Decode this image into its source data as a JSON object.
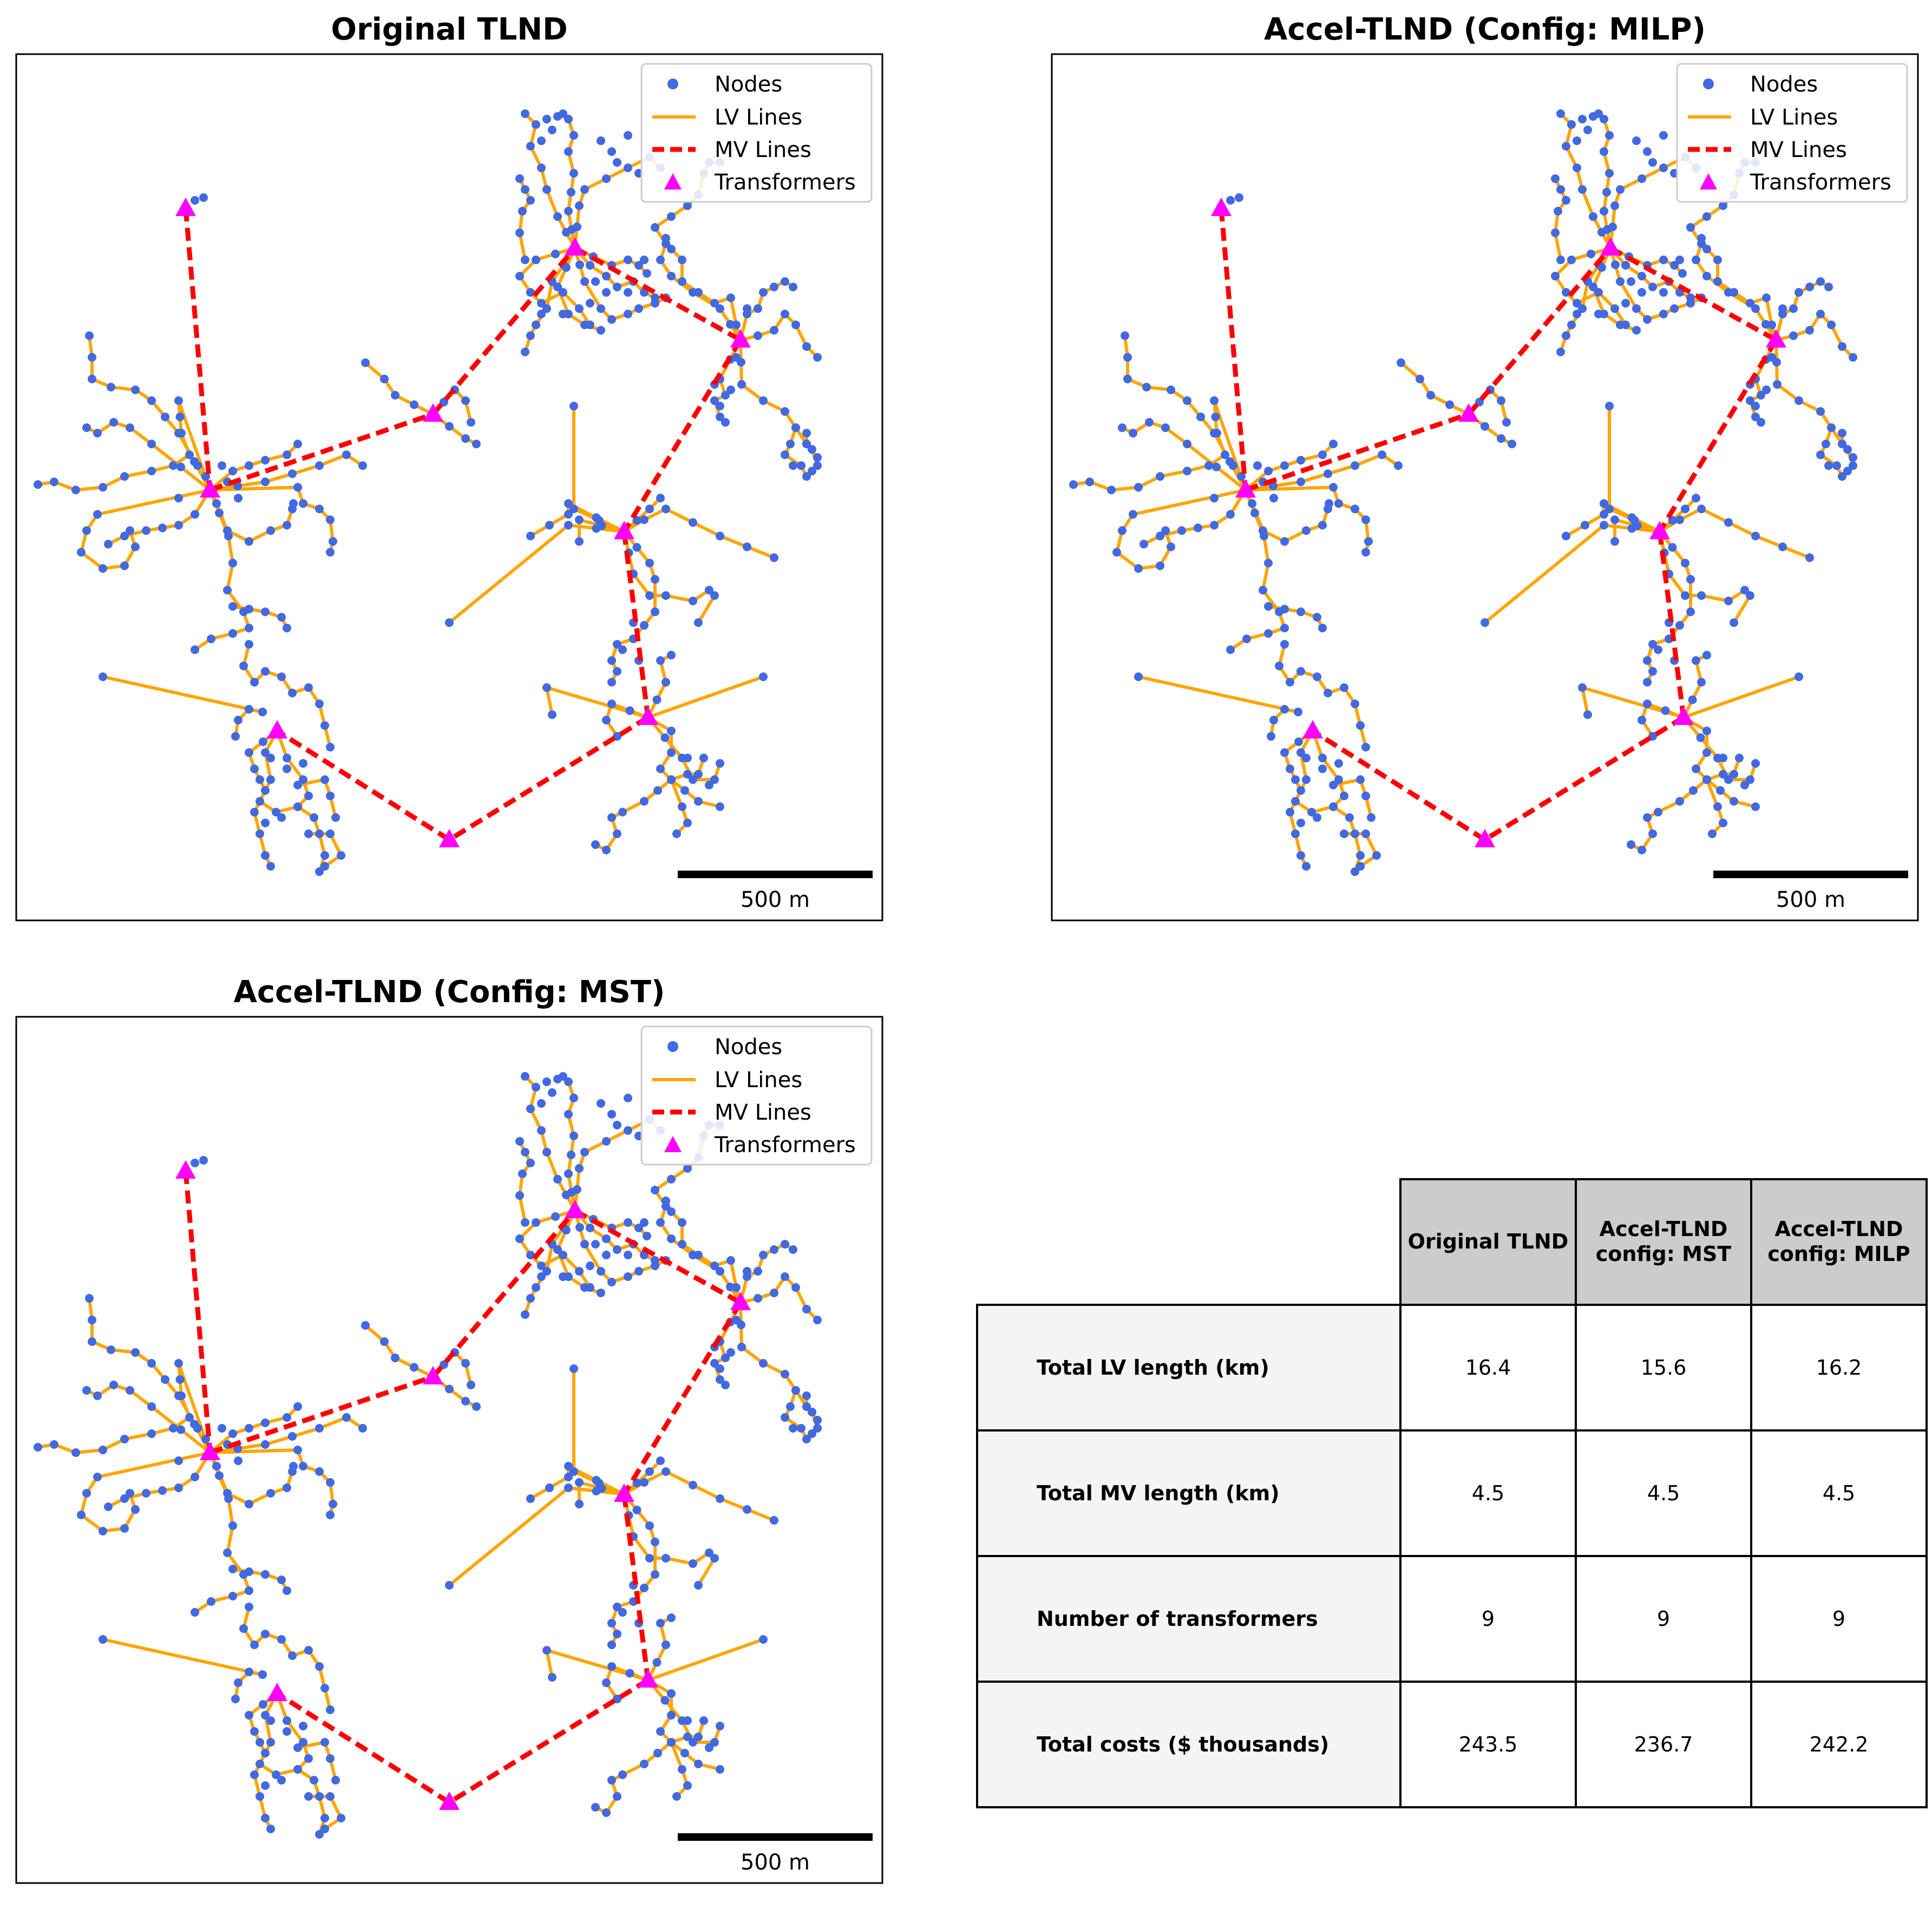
{
  "panels": [
    {
      "title": "Original TLND"
    },
    {
      "title": "Accel-TLND (Config: MILP)"
    },
    {
      "title": "Accel-TLND (Config: MST)"
    }
  ],
  "legend": {
    "nodes": "Nodes",
    "lv_lines": "LV Lines",
    "mv_lines": "MV Lines",
    "transformers": "Transformers"
  },
  "scale_bar": {
    "label": "500 m"
  },
  "colors": {
    "nodes": "#4169e1",
    "lv_lines": "#ffa500",
    "mv_lines": "#ff0000",
    "transformers": "#ff00ff"
  },
  "table": {
    "headers": [
      "Original TLND",
      "Accel-TLND config: MST",
      "Accel-TLND config: MILP"
    ],
    "header_lines": [
      [
        "Original TLND"
      ],
      [
        "Accel-TLND",
        "config: MST"
      ],
      [
        "Accel-TLND",
        "config: MILP"
      ]
    ],
    "rows": [
      {
        "label": "Total LV length (km)",
        "values": [
          "16.4",
          "15.6",
          "16.2"
        ]
      },
      {
        "label": "Total MV length (km)",
        "values": [
          "4.5",
          "4.5",
          "4.5"
        ]
      },
      {
        "label": "Number of transformers",
        "values": [
          "9",
          "9",
          "9"
        ]
      },
      {
        "label": "Total costs ($ thousands)",
        "values": [
          "243.5",
          "236.7",
          "242.2"
        ]
      }
    ]
  }
}
